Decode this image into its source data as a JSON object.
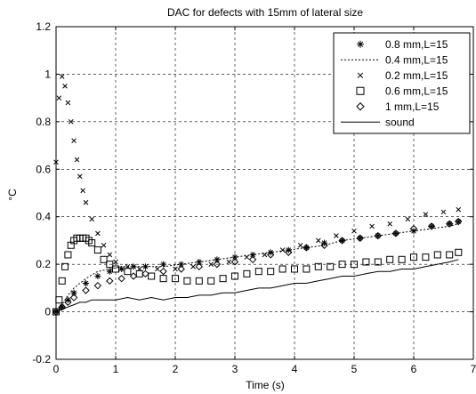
{
  "chart_data": {
    "type": "scatter",
    "title": "DAC for defects with 15mm of lateral size",
    "xlabel": "Time (s)",
    "ylabel": "°C",
    "xlim": [
      0,
      7
    ],
    "ylim": [
      -0.2,
      1.2
    ],
    "xticks": [
      0,
      1,
      2,
      3,
      4,
      5,
      6,
      7
    ],
    "yticks": [
      -0.2,
      0,
      0.2,
      0.4,
      0.6,
      0.8,
      1,
      1.2
    ],
    "xtick_labels": [
      "0",
      "1",
      "2",
      "3",
      "4",
      "5",
      "6",
      "7"
    ],
    "ytick_labels": [
      "-0.2",
      "0",
      "0.2",
      "0.4",
      "0.6",
      "0.8",
      "1",
      "1.2"
    ],
    "grid": true,
    "grid_style": "dashed",
    "legend_position": "top-right",
    "line_color": "#000000",
    "series": [
      {
        "name": "0.8 mm,L=15",
        "marker": "asterisk",
        "x": [
          0,
          0.1,
          0.2,
          0.3,
          0.5,
          0.7,
          0.9,
          1.1,
          1.3,
          1.5,
          1.8,
          2.1,
          2.4,
          2.7,
          3.0,
          3.3,
          3.6,
          3.9,
          4.2,
          4.5,
          4.8,
          5.1,
          5.4,
          5.7,
          6.0,
          6.3,
          6.6,
          6.75
        ],
        "y": [
          0,
          0.02,
          0.05,
          0.08,
          0.12,
          0.15,
          0.17,
          0.18,
          0.19,
          0.19,
          0.2,
          0.2,
          0.21,
          0.22,
          0.23,
          0.24,
          0.25,
          0.26,
          0.27,
          0.29,
          0.3,
          0.31,
          0.32,
          0.33,
          0.34,
          0.36,
          0.37,
          0.38
        ]
      },
      {
        "name": "0.4 mm,L=15",
        "marker": "dotted",
        "x": [
          0,
          0.1,
          0.2,
          0.3,
          0.5,
          0.7,
          0.9,
          1.1,
          1.3,
          1.5,
          1.8,
          2.1,
          2.4,
          2.7,
          3.0,
          3.3,
          3.6,
          3.9,
          4.2,
          4.5,
          4.8,
          5.1,
          5.4,
          5.7,
          6.0,
          6.3,
          6.6,
          6.75
        ],
        "y": [
          0,
          0.03,
          0.07,
          0.1,
          0.14,
          0.17,
          0.18,
          0.19,
          0.19,
          0.19,
          0.19,
          0.2,
          0.21,
          0.22,
          0.23,
          0.24,
          0.25,
          0.26,
          0.27,
          0.28,
          0.3,
          0.31,
          0.32,
          0.33,
          0.34,
          0.35,
          0.36,
          0.37
        ]
      },
      {
        "name": "0.2 mm,L=15",
        "marker": "x",
        "x": [
          0,
          0.05,
          0.1,
          0.15,
          0.2,
          0.25,
          0.3,
          0.35,
          0.4,
          0.45,
          0.5,
          0.6,
          0.7,
          0.8,
          0.9,
          1.0,
          1.2,
          1.4,
          1.7,
          2.0,
          2.3,
          2.6,
          2.9,
          3.2,
          3.5,
          3.8,
          4.1,
          4.4,
          4.7,
          5.0,
          5.3,
          5.6,
          5.9,
          6.2,
          6.5,
          6.75
        ],
        "y": [
          0.63,
          0.9,
          0.99,
          0.95,
          0.88,
          0.8,
          0.72,
          0.64,
          0.57,
          0.51,
          0.46,
          0.39,
          0.33,
          0.28,
          0.24,
          0.21,
          0.19,
          0.18,
          0.18,
          0.18,
          0.19,
          0.2,
          0.21,
          0.23,
          0.24,
          0.26,
          0.28,
          0.3,
          0.32,
          0.34,
          0.36,
          0.37,
          0.39,
          0.41,
          0.42,
          0.43
        ]
      },
      {
        "name": "0.6 mm,L=15",
        "marker": "square",
        "x": [
          0,
          0.05,
          0.1,
          0.15,
          0.2,
          0.25,
          0.3,
          0.35,
          0.4,
          0.45,
          0.5,
          0.55,
          0.6,
          0.7,
          0.8,
          0.9,
          1.0,
          1.2,
          1.4,
          1.6,
          1.8,
          2.0,
          2.2,
          2.4,
          2.6,
          2.8,
          3.0,
          3.2,
          3.4,
          3.6,
          3.8,
          4.0,
          4.2,
          4.4,
          4.6,
          4.8,
          5.0,
          5.2,
          5.4,
          5.6,
          5.8,
          6.0,
          6.2,
          6.4,
          6.6,
          6.75
        ],
        "y": [
          0,
          0.05,
          0.13,
          0.19,
          0.24,
          0.28,
          0.3,
          0.31,
          0.31,
          0.31,
          0.31,
          0.3,
          0.29,
          0.26,
          0.22,
          0.2,
          0.18,
          0.17,
          0.16,
          0.15,
          0.14,
          0.14,
          0.13,
          0.13,
          0.13,
          0.14,
          0.15,
          0.16,
          0.17,
          0.17,
          0.18,
          0.18,
          0.18,
          0.19,
          0.19,
          0.2,
          0.2,
          0.21,
          0.21,
          0.22,
          0.22,
          0.23,
          0.23,
          0.24,
          0.24,
          0.25
        ]
      },
      {
        "name": "1 mm,L=15",
        "marker": "diamond",
        "x": [
          0,
          0.1,
          0.2,
          0.3,
          0.5,
          0.7,
          0.9,
          1.1,
          1.3,
          1.5,
          1.8,
          2.1,
          2.4,
          2.7,
          3.0,
          3.3,
          3.6,
          3.9,
          4.2,
          4.5,
          4.8,
          5.1,
          5.4,
          5.7,
          6.0,
          6.3,
          6.6,
          6.75
        ],
        "y": [
          0,
          0.02,
          0.04,
          0.06,
          0.09,
          0.11,
          0.13,
          0.14,
          0.15,
          0.16,
          0.17,
          0.18,
          0.19,
          0.2,
          0.21,
          0.22,
          0.24,
          0.25,
          0.27,
          0.28,
          0.3,
          0.31,
          0.32,
          0.33,
          0.35,
          0.36,
          0.37,
          0.38
        ]
      },
      {
        "name": "sound",
        "marker": "line",
        "x": [
          0,
          0.1,
          0.2,
          0.3,
          0.4,
          0.5,
          0.6,
          0.7,
          0.8,
          0.9,
          1.0,
          1.2,
          1.4,
          1.6,
          1.8,
          2.0,
          2.2,
          2.4,
          2.6,
          2.8,
          3.0,
          3.2,
          3.4,
          3.6,
          3.8,
          4.0,
          4.2,
          4.4,
          4.6,
          4.8,
          5.0,
          5.2,
          5.4,
          5.6,
          5.8,
          6.0,
          6.2,
          6.4,
          6.6,
          6.75
        ],
        "y": [
          0,
          0.01,
          0.02,
          0.03,
          0.04,
          0.04,
          0.05,
          0.05,
          0.05,
          0.05,
          0.05,
          0.06,
          0.05,
          0.06,
          0.05,
          0.06,
          0.06,
          0.07,
          0.07,
          0.08,
          0.08,
          0.09,
          0.1,
          0.1,
          0.11,
          0.12,
          0.12,
          0.13,
          0.14,
          0.15,
          0.15,
          0.16,
          0.17,
          0.17,
          0.18,
          0.18,
          0.19,
          0.2,
          0.21,
          0.22
        ]
      }
    ]
  }
}
